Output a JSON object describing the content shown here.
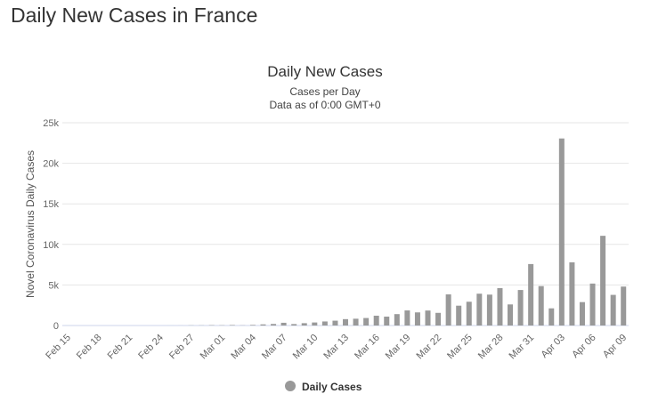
{
  "page_title": "Daily New Cases in France",
  "chart_data": {
    "type": "bar",
    "title": "Daily New Cases",
    "subtitle": [
      "Cases per Day",
      "Data as of 0:00 GMT+0"
    ],
    "y_label": "Novel Coronavirus Daily Cases",
    "categories": [
      "Feb 15",
      null,
      null,
      "Feb 18",
      null,
      null,
      "Feb 21",
      null,
      null,
      "Feb 24",
      null,
      null,
      "Feb 27",
      null,
      null,
      "Mar 01",
      null,
      null,
      "Mar 04",
      null,
      null,
      "Mar 07",
      null,
      null,
      "Mar 10",
      null,
      null,
      "Mar 13",
      null,
      null,
      "Mar 16",
      null,
      null,
      "Mar 19",
      null,
      null,
      "Mar 22",
      null,
      null,
      "Mar 25",
      null,
      null,
      "Mar 28",
      null,
      null,
      "Mar 31",
      null,
      null,
      "Apr 03",
      null,
      null,
      "Apr 06",
      null,
      null,
      "Apr 09"
    ],
    "series": [
      {
        "name": "Daily Cases",
        "color": "#999999",
        "values": [
          1,
          0,
          0,
          0,
          0,
          0,
          0,
          0,
          0,
          0,
          2,
          4,
          20,
          19,
          43,
          30,
          61,
          21,
          73,
          138,
          190,
          336,
          177,
          286,
          372,
          497,
          595,
          785,
          838,
          924,
          1210,
          1097,
          1404,
          1861,
          1617,
          1847,
          1559,
          3838,
          2446,
          2931,
          3922,
          3809,
          4611,
          2599,
          4376,
          7578,
          4861,
          2116,
          23060,
          7788,
          2886,
          5171,
          11059,
          3777,
          4799
        ]
      }
    ],
    "ylim": [
      0,
      25000
    ],
    "yticks": [
      0,
      {
        "value": 5000,
        "label": "5k"
      },
      {
        "value": 10000,
        "label": "10k"
      },
      {
        "value": 15000,
        "label": "15k"
      },
      {
        "value": 20000,
        "label": "20k"
      },
      {
        "value": 25000,
        "label": "25k"
      }
    ],
    "grid": true
  }
}
